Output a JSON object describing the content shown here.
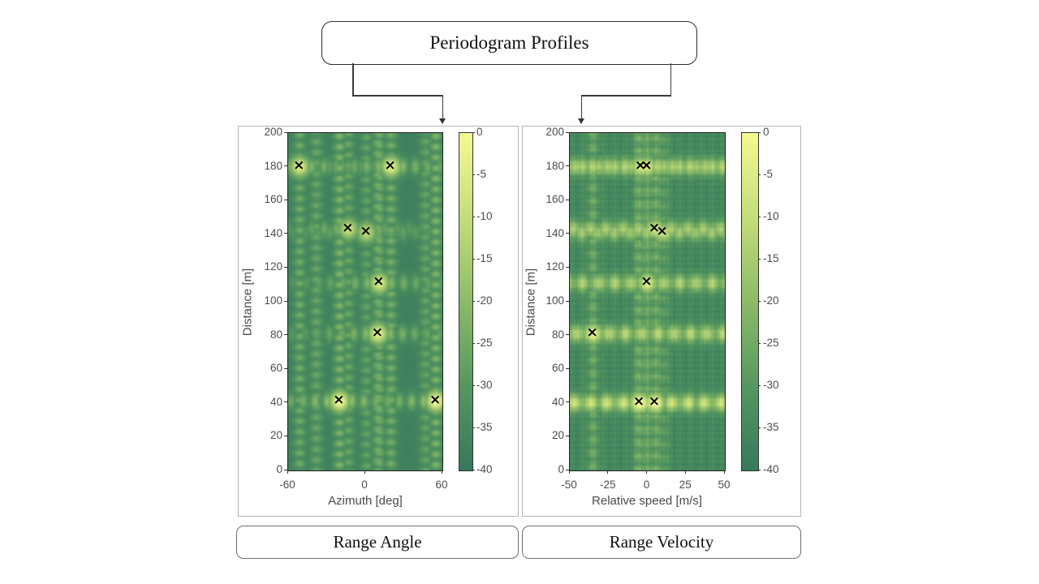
{
  "title": "Periodogram Profiles",
  "colors": {
    "background": "#ffffff",
    "line": "#3a3a3a",
    "panel_border": "#b5b5b5",
    "axis_text": "#4d4d4d",
    "marker": "#000000",
    "colormap_stops": [
      [
        0.0,
        "#36795c"
      ],
      [
        0.25,
        "#569760"
      ],
      [
        0.5,
        "#8cbb68"
      ],
      [
        0.75,
        "#c4dd7b"
      ],
      [
        1.0,
        "#f5f992"
      ]
    ]
  },
  "glyphs": {
    "target_marker": "×"
  },
  "chart_data": [
    {
      "type": "heatmap",
      "title": "Range Angle",
      "xlabel": "Azimuth [deg]",
      "ylabel": "Distance [m]",
      "xlim": [
        -60,
        60
      ],
      "ylim": [
        0,
        200
      ],
      "xticks": [
        -60,
        0,
        60
      ],
      "yticks": [
        0,
        20,
        40,
        60,
        80,
        100,
        120,
        140,
        160,
        180,
        200
      ],
      "colorbar": {
        "range": [
          -40,
          0
        ],
        "ticks": [
          0,
          -5,
          -10,
          -15,
          -20,
          -25,
          -30,
          -35,
          -40
        ]
      },
      "markers": [
        {
          "x": -51,
          "y": 180,
          "a": 0.85
        },
        {
          "x": 20,
          "y": 180,
          "a": 0.9
        },
        {
          "x": -13,
          "y": 143,
          "a": 0.75
        },
        {
          "x": 1,
          "y": 141,
          "a": 0.7
        },
        {
          "x": 11,
          "y": 111,
          "a": 0.85
        },
        {
          "x": 10,
          "y": 81,
          "a": 0.9
        },
        {
          "x": -20,
          "y": 41,
          "a": 1.0
        },
        {
          "x": 55,
          "y": 41,
          "a": 1.0
        }
      ],
      "texture": {
        "extra_columns": [
          {
            "x": -38,
            "a": 0.3
          },
          {
            "x": 47,
            "a": 0.28
          }
        ]
      }
    },
    {
      "type": "heatmap",
      "title": "Range Velocity",
      "xlabel": "Relative speed [m/s]",
      "ylabel": "Distance [m]",
      "xlim": [
        -50,
        50
      ],
      "ylim": [
        0,
        200
      ],
      "xticks": [
        -50,
        -25,
        0,
        25,
        50
      ],
      "yticks": [
        0,
        20,
        40,
        60,
        80,
        100,
        120,
        140,
        160,
        180,
        200
      ],
      "colorbar": {
        "range": [
          -40,
          0
        ],
        "ticks": [
          0,
          -5,
          -10,
          -15,
          -20,
          -25,
          -30,
          -35,
          -40
        ]
      },
      "markers": [
        {
          "x": -4,
          "y": 180,
          "a": 0.8
        },
        {
          "x": 0,
          "y": 180,
          "a": 0.75
        },
        {
          "x": 5,
          "y": 143,
          "a": 0.75
        },
        {
          "x": 10,
          "y": 141,
          "a": 0.7
        },
        {
          "x": 0,
          "y": 111,
          "a": 0.8
        },
        {
          "x": -35,
          "y": 81,
          "a": 0.85
        },
        {
          "x": -5,
          "y": 40,
          "a": 1.0
        },
        {
          "x": 5,
          "y": 40,
          "a": 0.95
        }
      ],
      "texture": {
        "extra_columns": []
      }
    }
  ],
  "layout_note_visible_arrows": 2
}
